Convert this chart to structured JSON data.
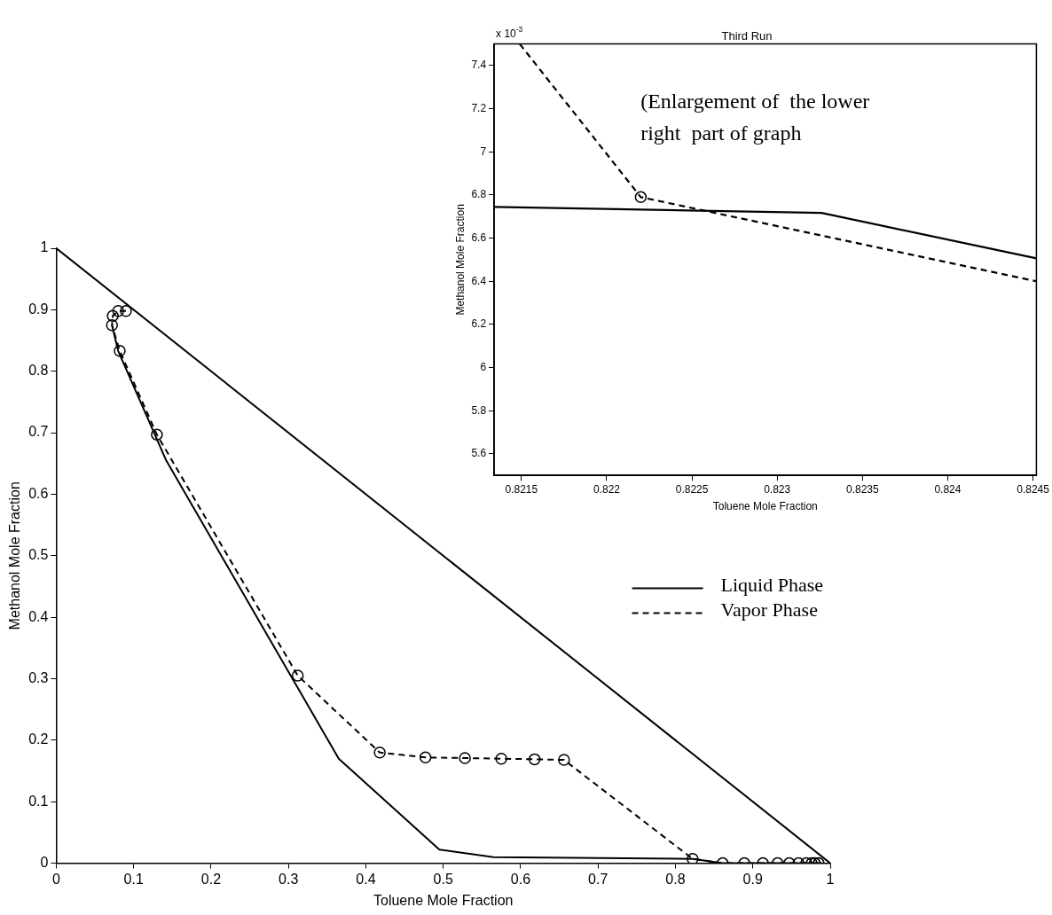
{
  "chart_data": [
    {
      "type": "line",
      "xlabel": "Toluene Mole Fraction",
      "ylabel": "Methanol Mole Fraction",
      "xlim": [
        0,
        1
      ],
      "xticks": [
        0,
        0.1,
        0.2,
        0.3,
        0.4,
        0.5,
        0.6,
        0.7,
        0.8,
        0.9,
        1
      ],
      "ylim": [
        0,
        1
      ],
      "yticks": [
        0,
        0.1,
        0.2,
        0.3,
        0.4,
        0.5,
        0.6,
        0.7,
        0.8,
        0.9,
        1
      ],
      "grid": false,
      "legend": "right",
      "series": [
        {
          "color": "#000000",
          "line_style": "solid",
          "marker": "none",
          "x": [
            0,
            1
          ],
          "values": [
            1,
            0
          ]
        },
        {
          "name": "Liquid Phase",
          "color": "#000000",
          "line_style": "solid",
          "marker": "none",
          "x": [
            0.072,
            0.08,
            0.142,
            0.365,
            0.495,
            0.565,
            0.8233,
            0.86,
            0.99
          ],
          "values": [
            0.875,
            0.833,
            0.655,
            0.17,
            0.022,
            0.01,
            0.007,
            0,
            0
          ]
        },
        {
          "name": "Vapor Phase",
          "color": "#000000",
          "line_style": "dashed",
          "marker": "circle",
          "x": [
            0.09,
            0.08,
            0.073,
            0.072,
            0.082,
            0.13,
            0.312,
            0.418,
            0.477,
            0.528,
            0.575,
            0.618,
            0.656,
            0.8222,
            0.861,
            0.889,
            0.913,
            0.932,
            0.947,
            0.959,
            0.969,
            0.976,
            0.98,
            0.985
          ],
          "values": [
            0.898,
            0.898,
            0.89,
            0.875,
            0.833,
            0.697,
            0.305,
            0.18,
            0.172,
            0.171,
            0.17,
            0.169,
            0.168,
            0.007,
            0,
            0,
            0,
            0,
            0,
            0,
            0,
            0,
            0,
            0
          ]
        }
      ]
    },
    {
      "type": "line",
      "title": "Third Run",
      "xlabel": "Toluene Mole Fraction",
      "ylabel": "Methanol Mole Fraction",
      "xlim": [
        0.82134,
        0.82452
      ],
      "xticks": [
        0.8215,
        0.822,
        0.8225,
        0.823,
        0.8235,
        0.824,
        0.8245
      ],
      "ylim": [
        5.5,
        7.5
      ],
      "yticks": [
        5.6,
        5.8,
        6,
        6.2,
        6.4,
        6.6,
        6.8,
        7,
        7.2,
        7.4
      ],
      "grid": false,
      "annotations": [
        "x 10$^{-3}$",
        "(Enlargement of  the lower right  part of graph"
      ],
      "series": [
        {
          "color": "#000000",
          "line_style": "solid",
          "marker": "none",
          "x": [
            0.82134,
            0.82326,
            0.82452
          ],
          "values": [
            6.745,
            6.717,
            6.506
          ]
        },
        {
          "color": "#000000",
          "line_style": "dashed",
          "marker": "none",
          "x": [
            0.82149,
            0.8222,
            0.82452
          ],
          "values": [
            7.5,
            6.79,
            6.4
          ]
        },
        {
          "type": "scatter",
          "color": "#000000",
          "marker": "circle",
          "x": [
            0.8222
          ],
          "values": [
            6.79
          ]
        }
      ]
    }
  ]
}
